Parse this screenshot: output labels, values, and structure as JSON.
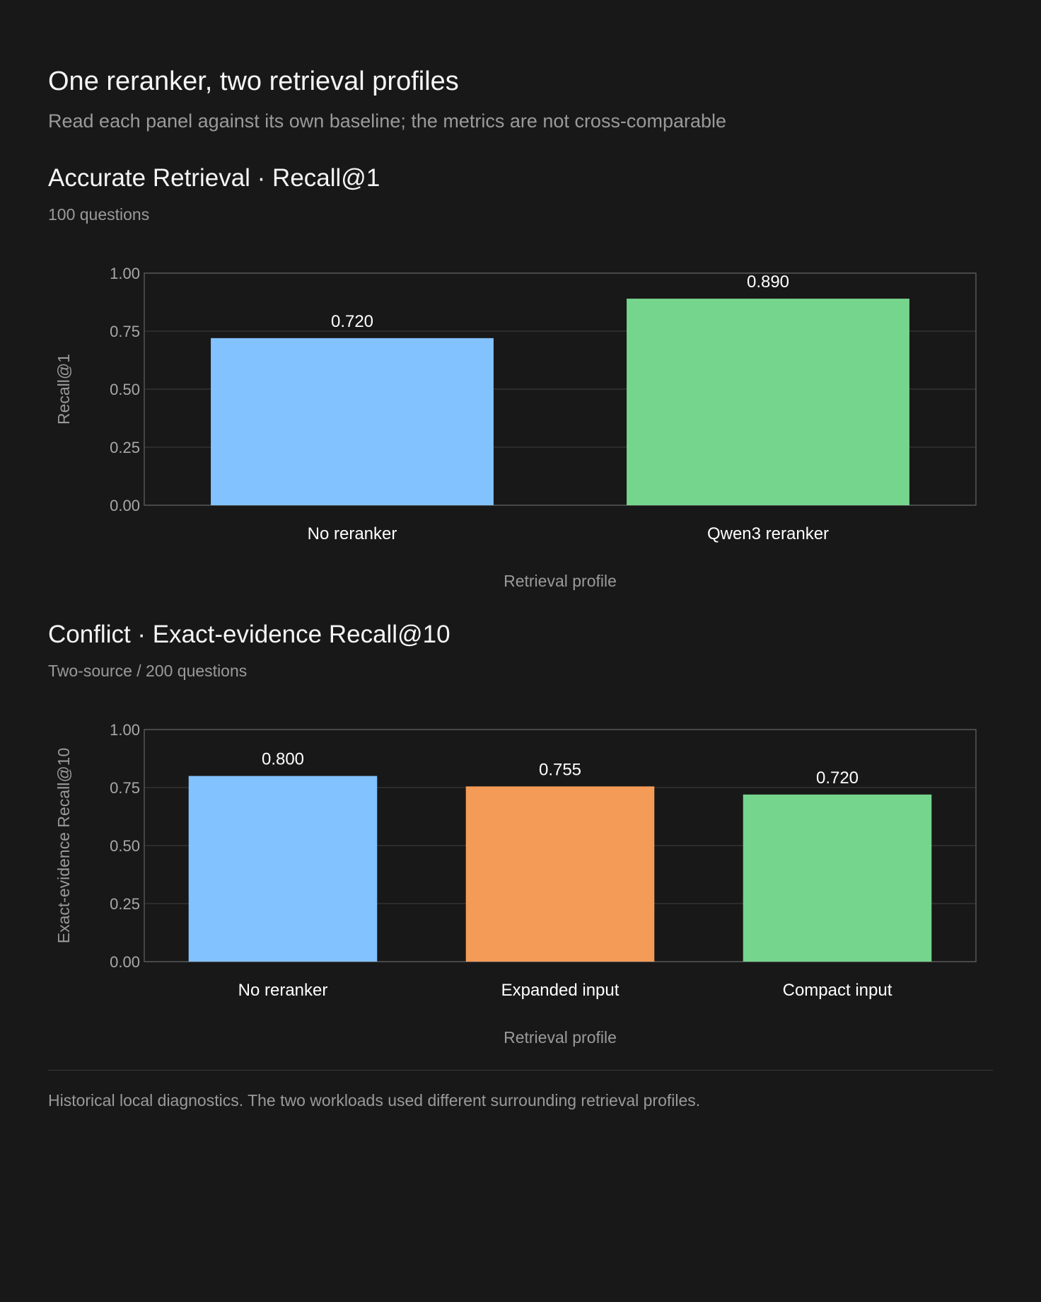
{
  "header": {
    "title": "One reranker, two retrieval profiles",
    "subtitle": "Read each panel against its own baseline; the metrics are not cross-comparable"
  },
  "footer": {
    "note": "Historical local diagnostics. The two workloads used different surrounding retrieval profiles."
  },
  "colors": {
    "background": "#181818",
    "blue": "#82c2ff",
    "green": "#76d58d",
    "orange": "#f59b58",
    "grid": "#333333",
    "axis": "#555555"
  },
  "chart_data": [
    {
      "type": "bar",
      "title": "Accurate Retrieval · Recall@1",
      "subtitle": "100 questions",
      "xlabel": "Retrieval profile",
      "ylabel": "Recall@1",
      "categories": [
        "No reranker",
        "Qwen3 reranker"
      ],
      "values": [
        0.72,
        0.89
      ],
      "value_labels": [
        "0.720",
        "0.890"
      ],
      "colors": [
        "#82c2ff",
        "#76d58d"
      ],
      "ylim": [
        0,
        1
      ],
      "yticks": [
        "0.00",
        "0.25",
        "0.50",
        "0.75",
        "1.00"
      ],
      "grid": true,
      "legend": "none"
    },
    {
      "type": "bar",
      "title": "Conflict · Exact-evidence Recall@10",
      "subtitle": "Two-source / 200 questions",
      "xlabel": "Retrieval profile",
      "ylabel": "Exact-evidence Recall@10",
      "categories": [
        "No reranker",
        "Expanded input",
        "Compact input"
      ],
      "values": [
        0.8,
        0.755,
        0.72
      ],
      "value_labels": [
        "0.800",
        "0.755",
        "0.720"
      ],
      "colors": [
        "#82c2ff",
        "#f59b58",
        "#76d58d"
      ],
      "ylim": [
        0,
        1
      ],
      "yticks": [
        "0.00",
        "0.25",
        "0.50",
        "0.75",
        "1.00"
      ],
      "grid": true,
      "legend": "none"
    }
  ]
}
